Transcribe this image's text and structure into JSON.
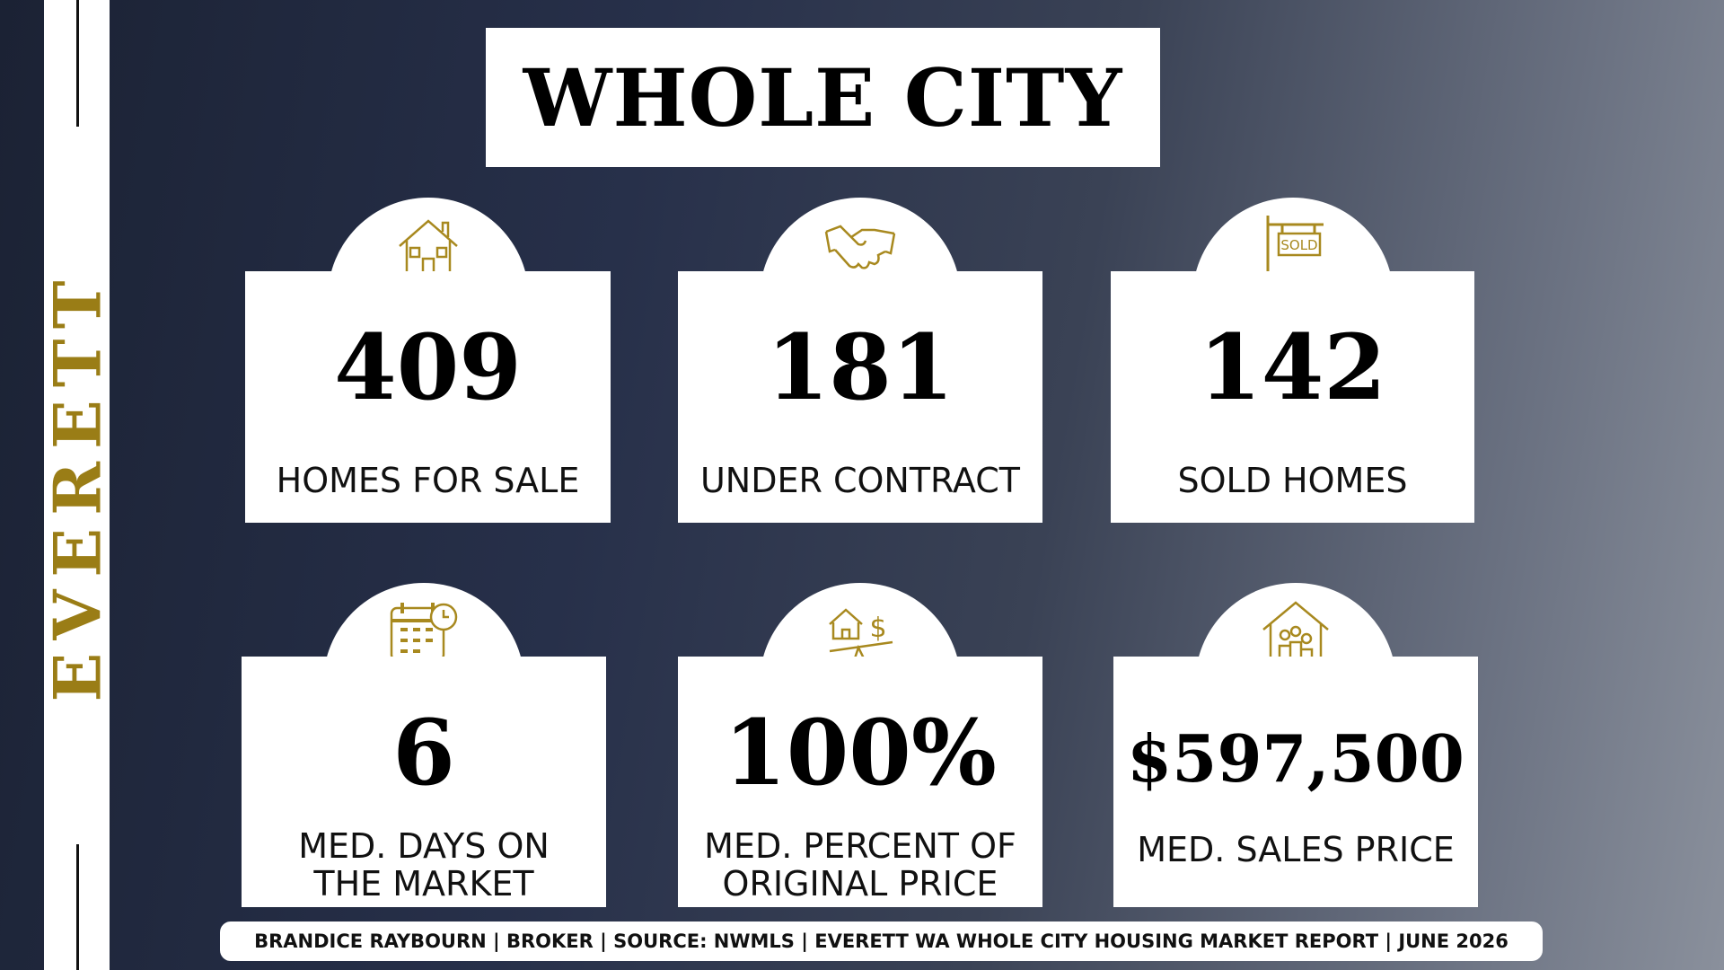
{
  "header": {
    "title": "WHOLE CITY"
  },
  "sidebar": {
    "label": "EVERETT"
  },
  "cards": [
    {
      "icon": "house",
      "value": "409",
      "label": [
        "HOMES FOR SALE"
      ]
    },
    {
      "icon": "handshake",
      "value": "181",
      "label": [
        "UNDER CONTRACT"
      ]
    },
    {
      "icon": "sold",
      "value": "142",
      "label": [
        "SOLD HOMES"
      ],
      "icon_text": "SOLD"
    },
    {
      "icon": "calendar",
      "value": "6",
      "label": [
        "MED. DAYS ON",
        "THE MARKET"
      ]
    },
    {
      "icon": "scale",
      "value": "100%",
      "label": [
        "MED. PERCENT OF",
        "ORIGINAL PRICE"
      ],
      "icon_text": "$"
    },
    {
      "icon": "family",
      "value": "$597,500",
      "label": [
        "MED. SALES PRICE"
      ]
    }
  ],
  "footer": {
    "text": "BRANDICE RAYBOURN | BROKER | SOURCE: NWMLS | EVERETT WA WHOLE CITY HOUSING MARKET REPORT | JUNE  2026"
  }
}
